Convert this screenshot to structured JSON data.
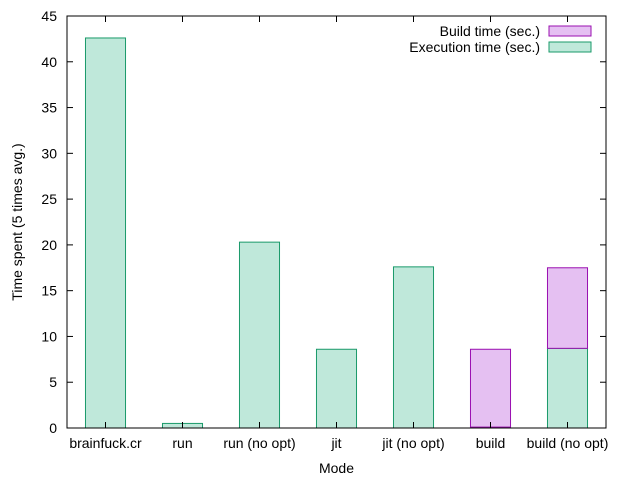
{
  "chart_data": {
    "type": "bar",
    "stacked": true,
    "title": "",
    "xlabel": "Mode",
    "ylabel": "Time spent (5 times avg.)",
    "ylim": [
      0,
      45
    ],
    "yticks": [
      0,
      5,
      10,
      15,
      20,
      25,
      30,
      35,
      40,
      45
    ],
    "grid": false,
    "legend_position": "top-right",
    "categories": [
      "brainfuck.cr",
      "run",
      "run (no opt)",
      "jit",
      "jit (no opt)",
      "build",
      "build (no opt)"
    ],
    "series": [
      {
        "name": "Execution time (sec.)",
        "values": [
          42.6,
          0.5,
          20.3,
          8.6,
          17.6,
          0.1,
          8.7
        ],
        "fill": "#bfe8da",
        "stroke": "#1a9a6a"
      },
      {
        "name": "Build time (sec.)",
        "values": [
          0,
          0,
          0,
          0,
          0,
          8.5,
          8.8
        ],
        "fill": "#e5c0f2",
        "stroke": "#9a0fb0"
      }
    ],
    "legend_order": [
      "Build time (sec.)",
      "Execution time (sec.)"
    ]
  }
}
